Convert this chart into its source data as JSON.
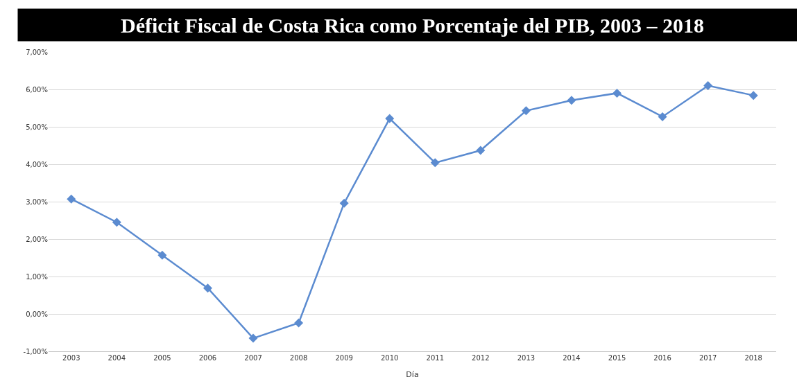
{
  "chart_data": {
    "type": "line",
    "title": "Déficit Fiscal de Costa Rica como Porcentaje del PIB, 2003 – 2018",
    "xlabel": "Día",
    "categories": [
      "2003",
      "2004",
      "2005",
      "2006",
      "2007",
      "2008",
      "2009",
      "2010",
      "2011",
      "2012",
      "2013",
      "2014",
      "2015",
      "2016",
      "2017",
      "2018"
    ],
    "series": [
      {
        "color": "#5b8bd0",
        "values": [
          3.07,
          2.45,
          1.57,
          0.69,
          -0.65,
          -0.24,
          2.96,
          5.22,
          4.04,
          4.37,
          5.43,
          5.71,
          5.9,
          5.27,
          6.1,
          5.84
        ]
      }
    ],
    "ylim": [
      -1,
      7
    ],
    "yticks": [
      {
        "value": -1,
        "label": "-1,00%"
      },
      {
        "value": 0,
        "label": "0,00%"
      },
      {
        "value": 1,
        "label": "1,00%"
      },
      {
        "value": 2,
        "label": "2,00%"
      },
      {
        "value": 3,
        "label": "3,00%"
      },
      {
        "value": 4,
        "label": "4,00%"
      },
      {
        "value": 5,
        "label": "5,00%"
      },
      {
        "value": 6,
        "label": "6,00%"
      },
      {
        "value": 7,
        "label": "7,00%"
      }
    ],
    "grid": "y",
    "legend": false,
    "marker": "diamond",
    "line_style": "solid"
  }
}
